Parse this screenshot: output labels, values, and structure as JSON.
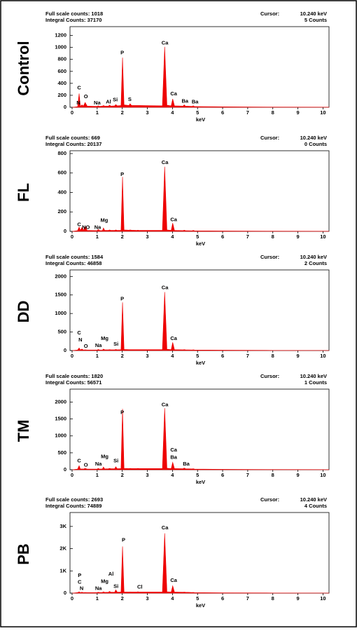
{
  "chart_data": [
    {
      "type": "spectrum",
      "sample": "Control",
      "full_scale": "Full scale counts: 1018",
      "integral": "Integral Counts: 37170",
      "cursor_label": "Cursor:",
      "cursor_value": "10.240 keV",
      "cursor_counts": "5 Counts",
      "x_label": "keV",
      "color": "#ee0000",
      "x": [
        0,
        0.22,
        0.28,
        0.33,
        0.39,
        0.45,
        0.52,
        0.6,
        1.0,
        1.04,
        1.1,
        1.21,
        1.25,
        1.3,
        1.45,
        1.49,
        1.55,
        1.7,
        1.74,
        1.8,
        1.95,
        2.01,
        2.07,
        2.27,
        2.31,
        2.37,
        2.58,
        2.62,
        2.68,
        3.6,
        3.69,
        3.78,
        3.95,
        4.01,
        4.08,
        4.42,
        4.47,
        4.52,
        4.78,
        4.83,
        4.88,
        6,
        8,
        10.24
      ],
      "values": [
        0,
        10,
        230,
        15,
        40,
        20,
        80,
        20,
        15,
        25,
        15,
        20,
        30,
        20,
        20,
        35,
        20,
        25,
        45,
        25,
        30,
        830,
        40,
        30,
        60,
        30,
        30,
        30,
        30,
        25,
        1010,
        35,
        25,
        140,
        25,
        20,
        40,
        20,
        15,
        25,
        12,
        8,
        4,
        2
      ],
      "xlim": [
        0,
        10.24
      ],
      "ylim": [
        0,
        1300
      ],
      "xticks": [
        0,
        1,
        2,
        3,
        4,
        5,
        6,
        7,
        8,
        9,
        10
      ],
      "yticks": [
        0,
        200,
        400,
        600,
        800,
        1000,
        1200
      ],
      "annotations": [
        {
          "text": "C",
          "x": 0.28,
          "y": 320
        },
        {
          "text": "O",
          "x": 0.55,
          "y": 175
        },
        {
          "text": "N",
          "x": 0.25,
          "y": 70
        },
        {
          "text": "Na",
          "x": 1.0,
          "y": 70
        },
        {
          "text": "Al",
          "x": 1.45,
          "y": 90
        },
        {
          "text": "Si",
          "x": 1.72,
          "y": 120
        },
        {
          "text": "P",
          "x": 2.0,
          "y": 905
        },
        {
          "text": "S",
          "x": 2.3,
          "y": 130
        },
        {
          "text": "Ca",
          "x": 3.7,
          "y": 1070
        },
        {
          "text": "Ca",
          "x": 4.05,
          "y": 220
        },
        {
          "text": "Ba",
          "x": 4.5,
          "y": 100
        },
        {
          "text": "Ba",
          "x": 4.9,
          "y": 90
        }
      ]
    },
    {
      "type": "spectrum",
      "sample": "FL",
      "full_scale": "Full scale counts: 669",
      "integral": "Integral Counts: 20137",
      "cursor_label": "Cursor:",
      "cursor_value": "10.240 keV",
      "cursor_counts": "0 Counts",
      "x_label": "keV",
      "color": "#ee0000",
      "x": [
        0,
        0.22,
        0.28,
        0.33,
        0.39,
        0.45,
        0.52,
        0.6,
        1.0,
        1.04,
        1.1,
        1.21,
        1.25,
        1.3,
        1.45,
        1.49,
        1.55,
        1.7,
        1.74,
        1.8,
        1.95,
        2.01,
        2.07,
        2.27,
        2.31,
        2.37,
        2.58,
        2.62,
        2.68,
        3.6,
        3.69,
        3.78,
        3.95,
        4.01,
        4.08,
        4.42,
        4.47,
        4.52,
        4.78,
        4.83,
        4.88,
        6,
        8,
        10.24
      ],
      "values": [
        0,
        8,
        45,
        10,
        40,
        10,
        55,
        10,
        8,
        20,
        8,
        8,
        35,
        10,
        10,
        15,
        10,
        10,
        15,
        10,
        10,
        560,
        15,
        12,
        15,
        12,
        10,
        12,
        10,
        10,
        665,
        15,
        10,
        85,
        10,
        8,
        12,
        8,
        6,
        10,
        6,
        4,
        2,
        1
      ],
      "xlim": [
        0,
        10.24
      ],
      "ylim": [
        0,
        800
      ],
      "xticks": [
        0,
        1,
        2,
        3,
        4,
        5,
        6,
        7,
        8,
        9,
        10
      ],
      "yticks": [
        0,
        200,
        400,
        600,
        800
      ],
      "annotations": [
        {
          "text": "C",
          "x": 0.28,
          "y": 70
        },
        {
          "text": "NO",
          "x": 0.55,
          "y": 40
        },
        {
          "text": "Na",
          "x": 1.02,
          "y": 40
        },
        {
          "text": "Mg",
          "x": 1.28,
          "y": 110
        },
        {
          "text": "P",
          "x": 2.0,
          "y": 585
        },
        {
          "text": "Ca",
          "x": 3.7,
          "y": 705
        },
        {
          "text": "Ca",
          "x": 4.05,
          "y": 120
        }
      ]
    },
    {
      "type": "spectrum",
      "sample": "DD",
      "full_scale": "Full scale counts: 1584",
      "integral": "Integral Counts: 46858",
      "cursor_label": "Cursor:",
      "cursor_value": "10.240 keV",
      "cursor_counts": "2 Counts",
      "x_label": "keV",
      "color": "#ee0000",
      "x": [
        0,
        0.22,
        0.28,
        0.33,
        0.39,
        0.45,
        0.52,
        0.6,
        1.0,
        1.04,
        1.1,
        1.21,
        1.25,
        1.3,
        1.45,
        1.49,
        1.55,
        1.7,
        1.74,
        1.8,
        1.95,
        2.01,
        2.07,
        2.27,
        2.31,
        2.37,
        2.58,
        2.62,
        2.68,
        3.6,
        3.69,
        3.78,
        3.95,
        4.01,
        4.08,
        4.42,
        4.47,
        4.52,
        4.78,
        4.83,
        4.88,
        6,
        8,
        10.24
      ],
      "values": [
        0,
        15,
        70,
        15,
        40,
        15,
        20,
        15,
        15,
        30,
        15,
        15,
        40,
        20,
        20,
        25,
        20,
        20,
        30,
        20,
        25,
        1300,
        30,
        25,
        25,
        25,
        25,
        25,
        25,
        25,
        1580,
        35,
        25,
        220,
        25,
        20,
        25,
        20,
        15,
        20,
        15,
        10,
        5,
        2
      ],
      "xlim": [
        0,
        10.24
      ],
      "ylim": [
        0,
        2100
      ],
      "xticks": [
        0,
        1,
        2,
        3,
        4,
        5,
        6,
        7,
        8,
        9,
        10
      ],
      "yticks": [
        0,
        500,
        1000,
        1500,
        2000
      ],
      "annotations": [
        {
          "text": "C",
          "x": 0.28,
          "y": 475
        },
        {
          "text": "N",
          "x": 0.33,
          "y": 285
        },
        {
          "text": "O",
          "x": 0.55,
          "y": 115
        },
        {
          "text": "Na",
          "x": 1.05,
          "y": 135
        },
        {
          "text": "Mg",
          "x": 1.3,
          "y": 325
        },
        {
          "text": "Si",
          "x": 1.75,
          "y": 170
        },
        {
          "text": "P",
          "x": 2.0,
          "y": 1390
        },
        {
          "text": "Ca",
          "x": 3.7,
          "y": 1695
        },
        {
          "text": "Ca",
          "x": 4.05,
          "y": 325
        }
      ]
    },
    {
      "type": "spectrum",
      "sample": "TM",
      "full_scale": "Full scale counts: 1820",
      "integral": "Integral Counts: 56571",
      "cursor_label": "Cursor:",
      "cursor_value": "10.240 keV",
      "cursor_counts": "1 Counts",
      "x_label": "keV",
      "color": "#ee0000",
      "x": [
        0,
        0.22,
        0.28,
        0.33,
        0.39,
        0.45,
        0.52,
        0.6,
        1.0,
        1.04,
        1.1,
        1.21,
        1.25,
        1.3,
        1.45,
        1.49,
        1.55,
        1.7,
        1.74,
        1.8,
        1.95,
        2.01,
        2.07,
        2.27,
        2.31,
        2.37,
        2.58,
        2.62,
        2.68,
        3.6,
        3.69,
        3.78,
        3.95,
        4.01,
        4.08,
        4.42,
        4.47,
        4.52,
        4.78,
        4.83,
        4.88,
        6,
        8,
        10.24
      ],
      "values": [
        0,
        20,
        120,
        20,
        25,
        20,
        40,
        20,
        20,
        40,
        20,
        25,
        80,
        25,
        30,
        40,
        30,
        30,
        90,
        30,
        35,
        1800,
        40,
        35,
        40,
        35,
        35,
        40,
        35,
        35,
        1820,
        45,
        35,
        220,
        35,
        30,
        50,
        30,
        25,
        30,
        20,
        12,
        6,
        3
      ],
      "xlim": [
        0,
        10.24
      ],
      "ylim": [
        0,
        2300
      ],
      "xticks": [
        0,
        1,
        2,
        3,
        4,
        5,
        6,
        7,
        8,
        9,
        10
      ],
      "yticks": [
        0,
        500,
        1000,
        1500,
        2000
      ],
      "annotations": [
        {
          "text": "C",
          "x": 0.28,
          "y": 255
        },
        {
          "text": "O",
          "x": 0.55,
          "y": 130
        },
        {
          "text": "Na",
          "x": 1.05,
          "y": 170
        },
        {
          "text": "Mg",
          "x": 1.3,
          "y": 385
        },
        {
          "text": "Si",
          "x": 1.75,
          "y": 255
        },
        {
          "text": "P",
          "x": 2.0,
          "y": 1685
        },
        {
          "text": "Ca",
          "x": 3.7,
          "y": 1915
        },
        {
          "text": "Ca",
          "x": 4.05,
          "y": 575
        },
        {
          "text": "Ba",
          "x": 4.05,
          "y": 360
        },
        {
          "text": "Ba",
          "x": 4.55,
          "y": 170
        }
      ]
    },
    {
      "type": "spectrum",
      "sample": "PB",
      "full_scale": "Full scale counts: 2693",
      "integral": "Integral Counts: 74889",
      "cursor_label": "Cursor:",
      "cursor_value": "10.240 keV",
      "cursor_counts": "4 Counts",
      "x_label": "keV",
      "color": "#ee0000",
      "x": [
        0,
        0.22,
        0.28,
        0.33,
        0.39,
        0.45,
        0.52,
        0.6,
        1.0,
        1.04,
        1.1,
        1.21,
        1.25,
        1.3,
        1.45,
        1.49,
        1.55,
        1.7,
        1.74,
        1.8,
        1.95,
        2.01,
        2.07,
        2.27,
        2.31,
        2.37,
        2.58,
        2.62,
        2.68,
        3.6,
        3.69,
        3.78,
        3.95,
        4.01,
        4.08,
        4.42,
        4.47,
        4.52,
        4.78,
        4.83,
        4.88,
        6,
        8,
        10.24
      ],
      "values": [
        0,
        25,
        60,
        25,
        40,
        25,
        30,
        25,
        30,
        40,
        30,
        35,
        60,
        35,
        40,
        80,
        40,
        45,
        150,
        45,
        50,
        2100,
        55,
        50,
        55,
        50,
        50,
        60,
        50,
        50,
        2693,
        60,
        50,
        330,
        50,
        40,
        45,
        40,
        30,
        35,
        25,
        15,
        8,
        4
      ],
      "xlim": [
        0,
        10.24
      ],
      "ylim": [
        0,
        3500
      ],
      "xticks": [
        0,
        1,
        2,
        3,
        4,
        5,
        6,
        7,
        8,
        9,
        10
      ],
      "yticks": [
        0,
        {
          "value": 1000,
          "label": "1K"
        },
        {
          "value": 2000,
          "label": "2K"
        },
        {
          "value": 3000,
          "label": "3K"
        }
      ],
      "annotations": [
        {
          "text": "P",
          "x": 0.3,
          "y": 790
        },
        {
          "text": "C",
          "x": 0.3,
          "y": 495
        },
        {
          "text": "N",
          "x": 0.38,
          "y": 200
        },
        {
          "text": "Na",
          "x": 1.05,
          "y": 200
        },
        {
          "text": "Mg",
          "x": 1.3,
          "y": 525
        },
        {
          "text": "Al",
          "x": 1.55,
          "y": 855
        },
        {
          "text": "Si",
          "x": 1.75,
          "y": 300
        },
        {
          "text": "Cl",
          "x": 2.7,
          "y": 265
        },
        {
          "text": "P",
          "x": 2.05,
          "y": 2375
        },
        {
          "text": "Ca",
          "x": 3.7,
          "y": 2935
        },
        {
          "text": "Ca",
          "x": 4.05,
          "y": 560
        }
      ]
    }
  ]
}
